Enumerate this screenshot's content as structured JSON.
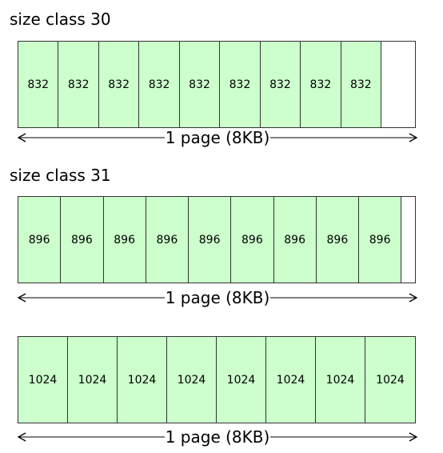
{
  "sections": [
    {
      "title": "size class 30",
      "slot_label": "832",
      "slot_count": 9,
      "slot_fraction": 0.9157
    },
    {
      "title": "size class 31",
      "slot_label": "896",
      "slot_count": 9,
      "slot_fraction": 0.9665
    },
    {
      "title": "",
      "slot_label": "1024",
      "slot_count": 8,
      "slot_fraction": 1.0
    }
  ],
  "arrow_label": "1 page (8KB)",
  "colors": {
    "slot_fill": "#ccffcc",
    "stroke": "#333333"
  }
}
